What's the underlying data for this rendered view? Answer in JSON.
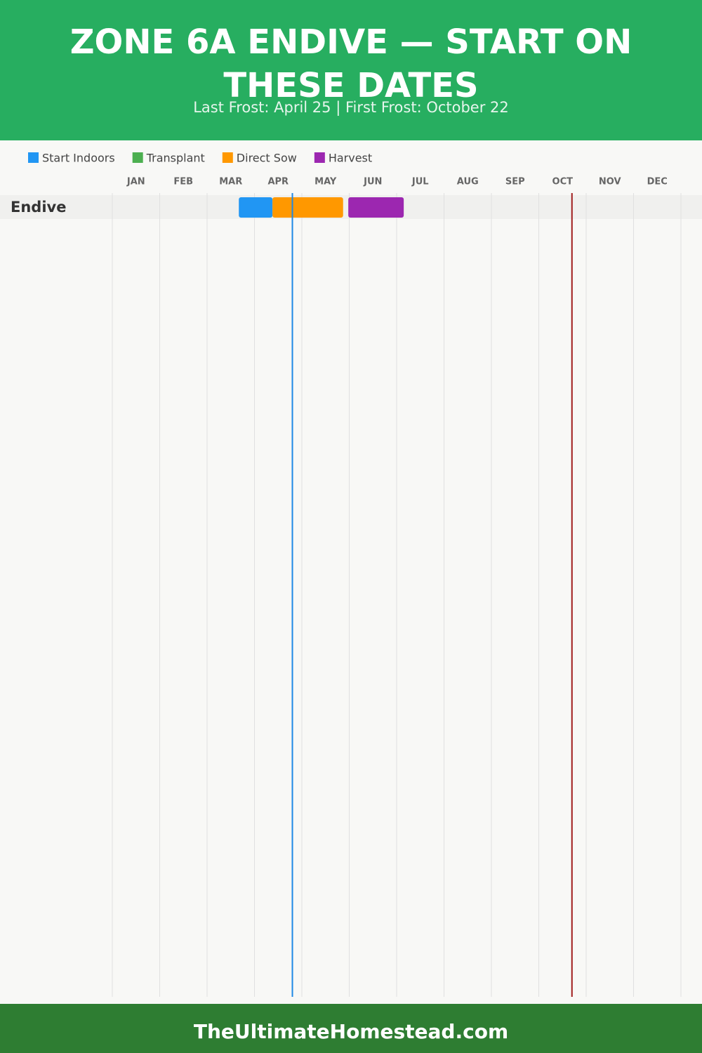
{
  "chart_data": {
    "type": "gantt",
    "title": "ZONE 6A ENDIVE — START ON THESE DATES",
    "subtitle": "Last Frost: April 25 | First Frost: October 22",
    "months": [
      "JAN",
      "FEB",
      "MAR",
      "APR",
      "MAY",
      "JUN",
      "JUL",
      "AUG",
      "SEP",
      "OCT",
      "NOV",
      "DEC"
    ],
    "xlim": [
      0,
      12
    ],
    "categories": [
      "Endive"
    ],
    "series": [
      {
        "name": "Start Indoors",
        "color": "#2196f3",
        "values": [
          [
            2.67,
            3.38
          ]
        ]
      },
      {
        "name": "Transplant",
        "color": "#4caf50",
        "values": [
          null
        ]
      },
      {
        "name": "Direct Sow",
        "color": "#ff9800",
        "values": [
          [
            3.38,
            4.87
          ]
        ]
      },
      {
        "name": "Harvest",
        "color": "#9c27b0",
        "values": [
          [
            4.98,
            6.15
          ]
        ]
      }
    ],
    "frost_lines": [
      {
        "value": 3.8,
        "color": "#1e88e5"
      },
      {
        "value": 9.7,
        "color": "#a01c1c"
      }
    ],
    "grid": true,
    "footer": "TheUltimateHomestead.com"
  }
}
